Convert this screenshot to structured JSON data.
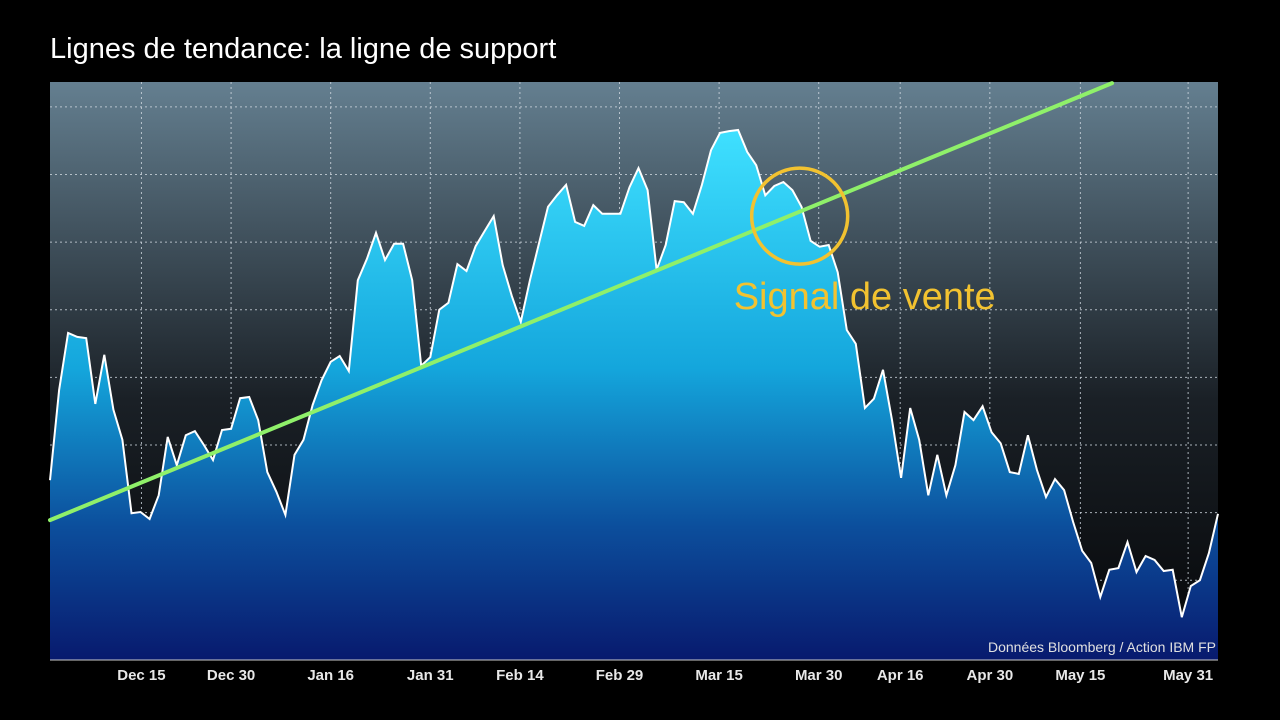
{
  "chart_data": {
    "type": "area",
    "title": "Lignes de tendance: la ligne de support",
    "source": "Données Bloomberg / Action IBM FP",
    "values": [
      31.1,
      46.7,
      56.6,
      55.9,
      55.7,
      44.3,
      52.8,
      43.3,
      38.1,
      25.4,
      25.6,
      24.4,
      28.5,
      38.6,
      33.7,
      38.9,
      39.6,
      37.2,
      34.6,
      39.8,
      40.0,
      45.3,
      45.5,
      41.5,
      32.5,
      29.1,
      25.1,
      35.5,
      38.1,
      44.1,
      48.4,
      51.6,
      52.6,
      50.0,
      65.7,
      69.4,
      73.9,
      69.2,
      72.0,
      72.0,
      65.7,
      50.9,
      52.4,
      60.6,
      61.8,
      68.5,
      67.3,
      71.6,
      74.2,
      76.8,
      68.3,
      63.0,
      58.5,
      65.7,
      72.0,
      78.4,
      80.4,
      82.2,
      75.8,
      75.1,
      78.7,
      77.2,
      77.2,
      77.2,
      81.8,
      85.1,
      81.3,
      67.5,
      71.8,
      79.4,
      79.2,
      77.2,
      82.2,
      88.2,
      91.2,
      91.5,
      91.7,
      87.9,
      85.6,
      80.4,
      82.0,
      82.7,
      81.3,
      78.4,
      72.5,
      71.5,
      71.8,
      67.1,
      57.1,
      54.7,
      43.6,
      45.2,
      50.2,
      41.5,
      31.5,
      43.6,
      38.1,
      28.5,
      35.5,
      28.5,
      33.7,
      42.9,
      41.5,
      43.9,
      39.4,
      37.5,
      32.5,
      32.2,
      38.9,
      32.9,
      28.2,
      31.3,
      29.4,
      23.9,
      18.9,
      16.8,
      10.9,
      15.6,
      15.9,
      20.4,
      15.2,
      18.0,
      17.3,
      15.4,
      15.6,
      7.4,
      12.8,
      13.8,
      18.5,
      25.3
    ],
    "xlim": [
      0,
      129
    ],
    "xticks": [
      {
        "value": 10.1,
        "label": "Dec 15"
      },
      {
        "value": 20.0,
        "label": "Dec 30"
      },
      {
        "value": 31.0,
        "label": "Jan 16"
      },
      {
        "value": 42.0,
        "label": "Jan 31"
      },
      {
        "value": 51.9,
        "label": "Feb 14"
      },
      {
        "value": 62.9,
        "label": "Feb 29"
      },
      {
        "value": 73.9,
        "label": "Mar 15"
      },
      {
        "value": 84.9,
        "label": "Mar 30"
      },
      {
        "value": 93.9,
        "label": "Apr 16"
      },
      {
        "value": 103.8,
        "label": "Apr 30"
      },
      {
        "value": 113.8,
        "label": "May 15"
      },
      {
        "value": 125.7,
        "label": "May 31"
      }
    ],
    "ylim": [
      0,
      100
    ],
    "grid_lines": [
      2.1,
      13.8,
      25.5,
      37.2,
      48.9,
      60.6,
      72.3,
      84,
      95.7
    ],
    "grid": true,
    "line_color": "#ffffff",
    "trendline": {
      "x": [
        0,
        117.3
      ],
      "y": [
        24.2,
        99.8
      ],
      "color": "#8ff06a"
    },
    "annotation": {
      "text": "Signal de vente",
      "x": 82.8,
      "y": 76.8,
      "color": "#f2c230"
    }
  }
}
